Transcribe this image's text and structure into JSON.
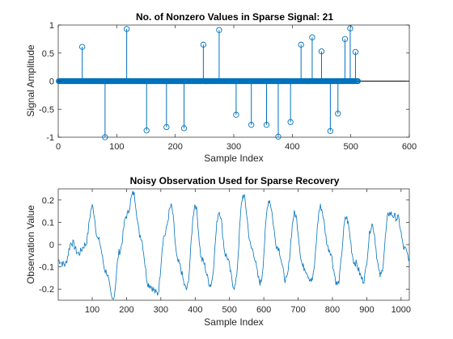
{
  "chart_data": [
    {
      "type": "stem",
      "title": "No. of Nonzero Values in Sparse Signal: 21",
      "xlabel": "Sample Index",
      "ylabel": "Signal Amplitude",
      "xlim": [
        0,
        600
      ],
      "ylim": [
        -1,
        1
      ],
      "xticks": [
        "0",
        "100",
        "200",
        "300",
        "400",
        "500",
        "600"
      ],
      "yticks": [
        "1",
        "0.5",
        "0",
        "-0.5",
        "-1"
      ],
      "signal_length": 512,
      "color": "#0072BD",
      "nonzero": [
        {
          "x": 41,
          "y": 0.61
        },
        {
          "x": 80,
          "y": -1.0
        },
        {
          "x": 117,
          "y": 0.93
        },
        {
          "x": 151,
          "y": -0.88
        },
        {
          "x": 185,
          "y": -0.82
        },
        {
          "x": 215,
          "y": -0.84
        },
        {
          "x": 248,
          "y": 0.65
        },
        {
          "x": 275,
          "y": 0.91
        },
        {
          "x": 304,
          "y": -0.6
        },
        {
          "x": 330,
          "y": -0.78
        },
        {
          "x": 356,
          "y": -0.78
        },
        {
          "x": 376,
          "y": -0.99
        },
        {
          "x": 397,
          "y": -0.73
        },
        {
          "x": 415,
          "y": 0.65
        },
        {
          "x": 434,
          "y": 0.78
        },
        {
          "x": 450,
          "y": 0.53
        },
        {
          "x": 465,
          "y": -0.89
        },
        {
          "x": 478,
          "y": -0.58
        },
        {
          "x": 490,
          "y": 0.75
        },
        {
          "x": 499,
          "y": 0.94
        },
        {
          "x": 508,
          "y": 0.52
        }
      ]
    },
    {
      "type": "line",
      "title": "Noisy Observation Used for Sparse Recovery",
      "xlabel": "Sample Index",
      "ylabel": "Observation Value",
      "xlim": [
        1,
        1024
      ],
      "ylim": [
        -0.25,
        0.25
      ],
      "xticks": [
        "100",
        "200",
        "300",
        "400",
        "500",
        "600",
        "700",
        "800",
        "900",
        "1000"
      ],
      "yticks": [
        "0.2",
        "0.1",
        "0",
        "-0.1",
        "-0.2"
      ],
      "color": "#0072BD",
      "x": [
        1,
        20,
        40,
        60,
        80,
        100,
        118,
        140,
        160,
        180,
        200,
        220,
        240,
        265,
        290,
        310,
        330,
        350,
        375,
        400,
        420,
        445,
        470,
        490,
        515,
        540,
        565,
        590,
        615,
        640,
        665,
        690,
        715,
        740,
        765,
        790,
        815,
        840,
        865,
        890,
        915,
        940,
        965,
        990,
        1010,
        1024
      ],
      "values": [
        -0.07,
        -0.09,
        0.01,
        -0.04,
        0.0,
        0.17,
        0.02,
        -0.12,
        -0.25,
        -0.03,
        0.13,
        0.23,
        0.04,
        -0.18,
        -0.22,
        0.04,
        0.17,
        -0.08,
        -0.2,
        0.18,
        -0.07,
        -0.18,
        0.15,
        -0.05,
        -0.19,
        0.22,
        -0.02,
        -0.17,
        0.2,
        -0.01,
        -0.16,
        0.14,
        -0.1,
        -0.16,
        0.17,
        -0.02,
        -0.18,
        0.12,
        -0.08,
        -0.16,
        0.09,
        -0.14,
        0.14,
        0.12,
        -0.02,
        -0.06
      ]
    }
  ]
}
